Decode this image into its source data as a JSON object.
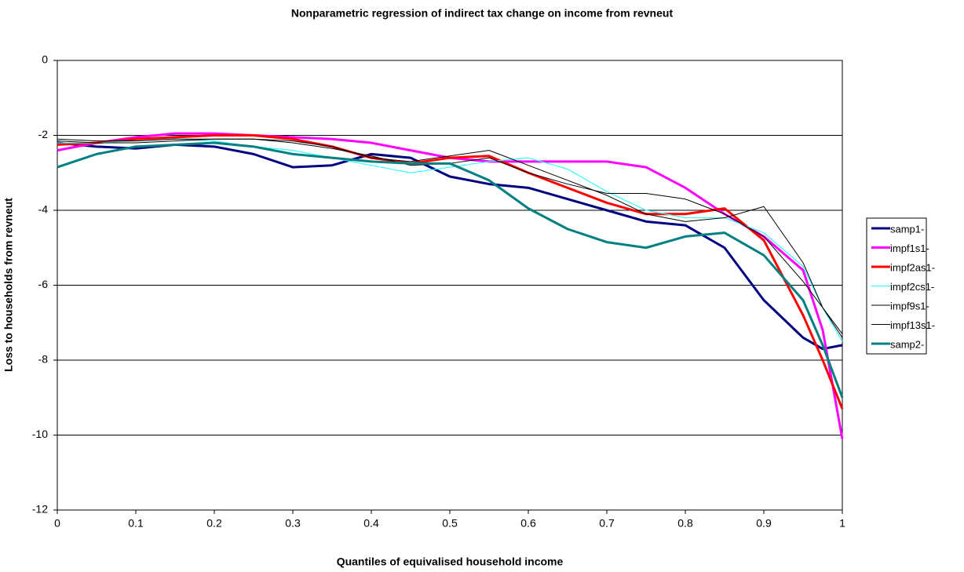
{
  "chart_data": {
    "type": "line",
    "title": "Nonparametric regression of indirect tax change on income from revneut",
    "x_label": "Quantiles of equivalised household income",
    "y_label": "Loss to households from revneut",
    "x": [
      0,
      0.05,
      0.1,
      0.15,
      0.2,
      0.25,
      0.3,
      0.35,
      0.4,
      0.45,
      0.5,
      0.55,
      0.6,
      0.65,
      0.7,
      0.75,
      0.8,
      0.85,
      0.9,
      0.95,
      0.975,
      1
    ],
    "series": [
      {
        "name": "samp1-",
        "color": "#000080",
        "values": [
          -2.2,
          -2.3,
          -2.35,
          -2.25,
          -2.3,
          -2.5,
          -2.85,
          -2.8,
          -2.5,
          -2.6,
          -3.1,
          -3.3,
          -3.4,
          -3.7,
          -4.0,
          -4.3,
          -4.4,
          -5.0,
          -6.4,
          -7.4,
          -7.7,
          -7.6
        ]
      },
      {
        "name": "impf1s1-",
        "color": "#ff00ff",
        "values": [
          -2.4,
          -2.2,
          -2.05,
          -1.95,
          -1.95,
          -2.0,
          -2.05,
          -2.1,
          -2.2,
          -2.4,
          -2.6,
          -2.7,
          -2.7,
          -2.7,
          -2.7,
          -2.85,
          -3.4,
          -4.1,
          -4.7,
          -5.6,
          -7.2,
          -10.1
        ]
      },
      {
        "name": "impf2as1-",
        "color": "#ff0000",
        "values": [
          -2.25,
          -2.2,
          -2.1,
          -2.05,
          -2.0,
          -2.0,
          -2.1,
          -2.3,
          -2.6,
          -2.75,
          -2.6,
          -2.55,
          -3.0,
          -3.4,
          -3.8,
          -4.1,
          -4.1,
          -3.95,
          -4.8,
          -6.8,
          -8.0,
          -9.3
        ]
      },
      {
        "name": "impf2cs1-",
        "color": "#33ffff",
        "values": [
          -2.2,
          -2.2,
          -2.15,
          -2.1,
          -2.15,
          -2.3,
          -2.4,
          -2.6,
          -2.8,
          -3.0,
          -2.85,
          -2.7,
          -2.6,
          -2.9,
          -3.5,
          -4.0,
          -4.2,
          -4.2,
          -4.6,
          -5.5,
          -6.6,
          -7.5
        ]
      },
      {
        "name": "impf9s1-",
        "color": "#000000",
        "values": [
          -2.15,
          -2.2,
          -2.2,
          -2.15,
          -2.1,
          -2.1,
          -2.15,
          -2.3,
          -2.6,
          -2.7,
          -2.55,
          -2.4,
          -2.8,
          -3.2,
          -3.6,
          -4.1,
          -4.3,
          -4.2,
          -3.9,
          -5.4,
          -6.6,
          -7.4
        ]
      },
      {
        "name": "impf13s1-",
        "color": "#000000",
        "values": [
          -2.1,
          -2.15,
          -2.15,
          -2.1,
          -2.1,
          -2.1,
          -2.2,
          -2.35,
          -2.55,
          -2.8,
          -2.75,
          -2.6,
          -3.0,
          -3.3,
          -3.55,
          -3.55,
          -3.7,
          -4.1,
          -4.7,
          -5.9,
          -6.6,
          -7.3
        ]
      },
      {
        "name": "samp2-",
        "color": "#008080",
        "values": [
          -2.85,
          -2.5,
          -2.3,
          -2.25,
          -2.2,
          -2.3,
          -2.5,
          -2.6,
          -2.7,
          -2.75,
          -2.75,
          -3.2,
          -3.95,
          -4.5,
          -4.85,
          -5.0,
          -4.7,
          -4.6,
          -5.2,
          -6.4,
          -7.6,
          -9.0
        ]
      }
    ],
    "xlim": [
      0,
      1
    ],
    "xticks": [
      0,
      0.1,
      0.2,
      0.3,
      0.4,
      0.5,
      0.6,
      0.7,
      0.8,
      0.9,
      1
    ],
    "ylim": [
      -12,
      0
    ],
    "yticks": [
      0,
      -2,
      -4,
      -6,
      -8,
      -10,
      -12
    ],
    "grid": true,
    "legend": "right"
  }
}
